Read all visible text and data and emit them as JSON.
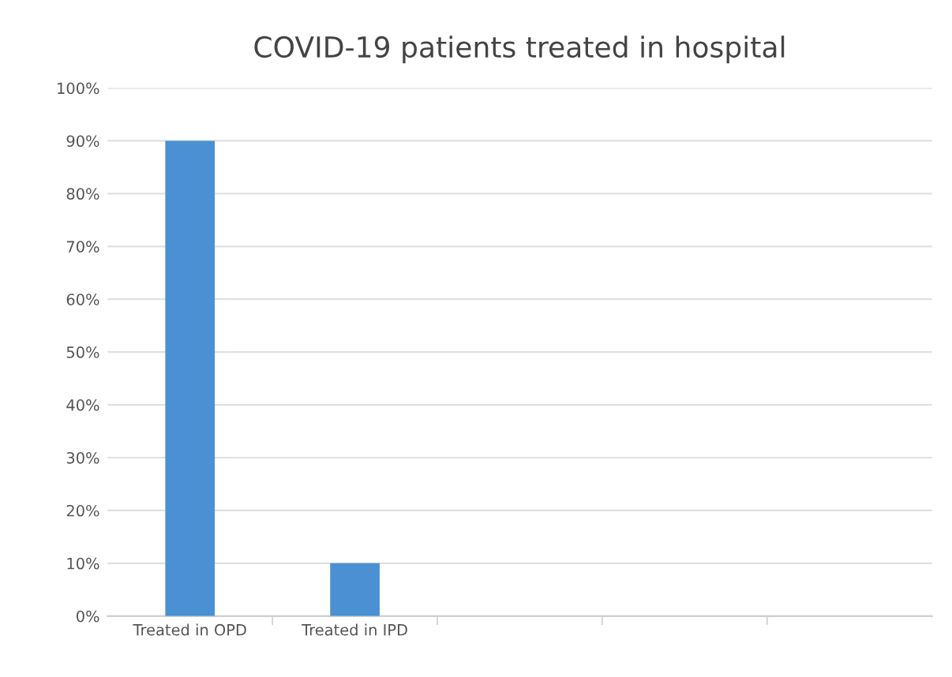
{
  "chart_data": {
    "type": "bar",
    "title": "COVID-19 patients treated in hospital",
    "categories": [
      "Treated in OPD",
      "Treated in IPD",
      null,
      null,
      null
    ],
    "series": [
      {
        "color": "#4a90d2",
        "values": [
          90,
          10,
          null,
          null,
          null
        ]
      }
    ],
    "ylim": [
      0,
      100
    ],
    "yticks": [
      {
        "value": 0,
        "label": "0%"
      },
      {
        "value": 10,
        "label": "10%"
      },
      {
        "value": 20,
        "label": "20%"
      },
      {
        "value": 30,
        "label": "30%"
      },
      {
        "value": 40,
        "label": "40%"
      },
      {
        "value": 50,
        "label": "50%"
      },
      {
        "value": 60,
        "label": "60%"
      },
      {
        "value": 70,
        "label": "70%"
      },
      {
        "value": 80,
        "label": "80%"
      },
      {
        "value": 90,
        "label": "90%"
      },
      {
        "value": 100,
        "label": "100%"
      }
    ],
    "grid": "y",
    "legend": false
  }
}
